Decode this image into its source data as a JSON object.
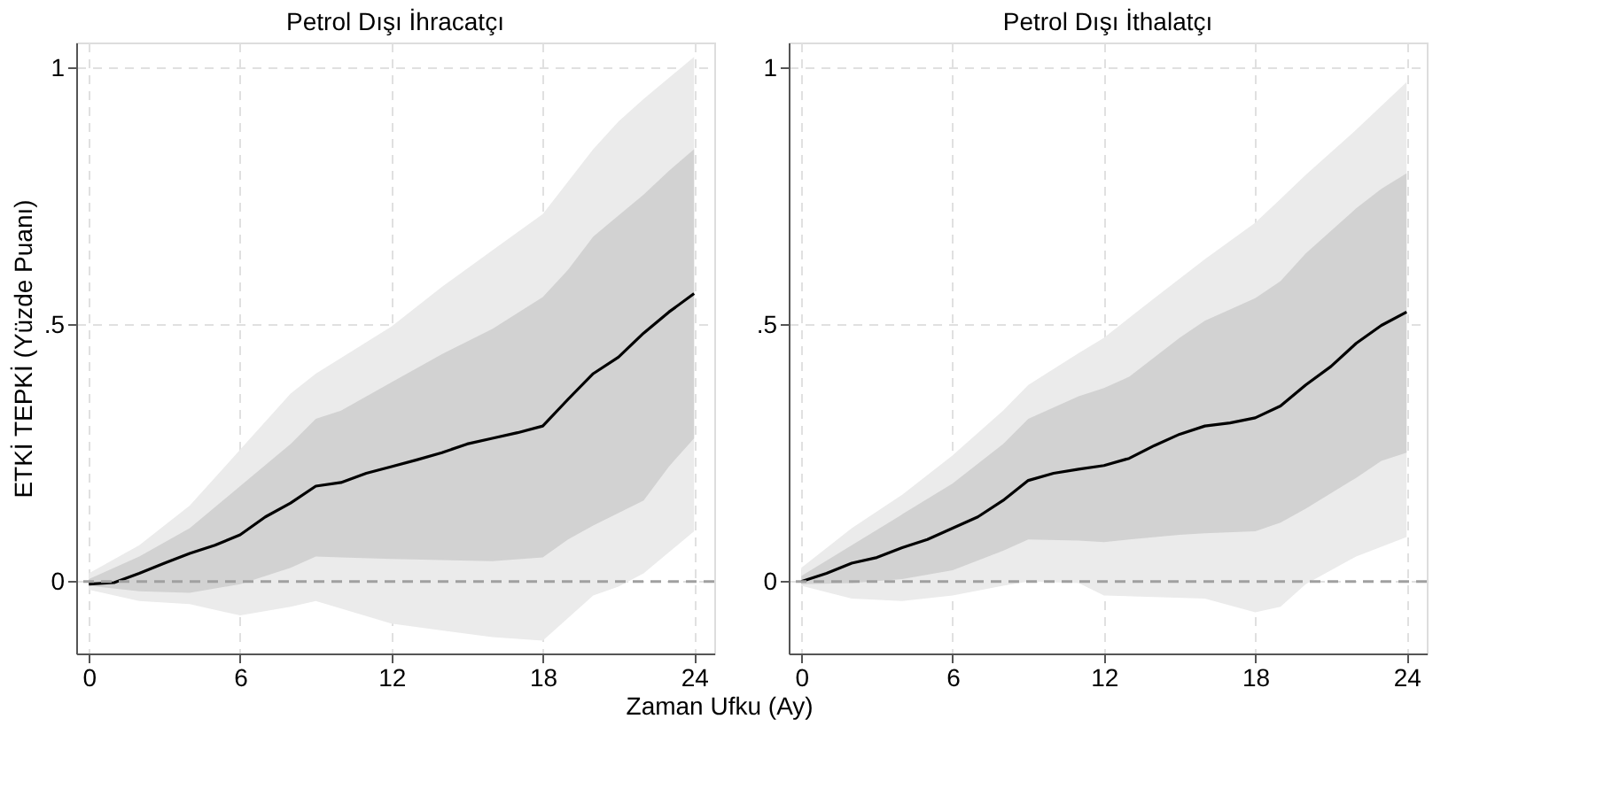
{
  "chart_data": [
    {
      "type": "line",
      "title": "Petrol Dışı İhracatçı",
      "xlabel": "Zaman Ufku (Ay)",
      "ylabel": "ETKİ TEPKİ (Yüzde Puanı)",
      "xlim": [
        -0.5,
        24.8
      ],
      "ylim": [
        -0.14,
        1.05
      ],
      "xticks": [
        0,
        6,
        12,
        18,
        24
      ],
      "yticks": [
        0,
        {
          "value": 0.5,
          "label": ".5"
        },
        1
      ],
      "grid": true,
      "series": [
        {
          "color": "#ebebeb",
          "x": [
            0,
            2,
            4,
            6,
            8,
            9,
            12,
            14,
            16,
            18,
            20,
            21,
            22,
            24
          ],
          "values": [
            null,
            null,
            null,
            null,
            null,
            null,
            null,
            null,
            null,
            null,
            null,
            null,
            null,
            null
          ],
          "upper": [
            0.016,
            0.071,
            0.148,
            0.257,
            0.366,
            0.405,
            0.497,
            0.574,
            0.645,
            0.716,
            0.842,
            0.896,
            0.94,
            1.022
          ],
          "lower": [
            -0.016,
            -0.038,
            -0.044,
            -0.066,
            -0.049,
            -0.038,
            -0.082,
            -0.095,
            -0.108,
            -0.115,
            -0.027,
            -0.01,
            0.016,
            0.098
          ]
        },
        {
          "color": "#d2d2d2",
          "x": [
            0,
            2,
            4,
            6,
            8,
            9,
            10,
            12,
            14,
            16,
            18,
            19,
            20,
            22,
            23,
            24
          ],
          "values": [
            null,
            null,
            null,
            null,
            null,
            null,
            null,
            null,
            null,
            null,
            null,
            null,
            null,
            null,
            null,
            null
          ],
          "upper": [
            0.005,
            0.049,
            0.104,
            0.186,
            0.268,
            0.317,
            0.333,
            0.388,
            0.443,
            0.492,
            0.554,
            0.607,
            0.672,
            0.754,
            0.8,
            0.842
          ],
          "lower": [
            -0.008,
            -0.019,
            -0.022,
            -0.005,
            0.027,
            0.049,
            0.047,
            0.044,
            0.042,
            0.04,
            0.047,
            0.082,
            0.109,
            0.158,
            0.224,
            0.279
          ]
        },
        {
          "color": "#000000",
          "x": [
            0,
            1,
            2,
            3,
            4,
            5,
            6,
            7,
            8,
            9,
            10,
            11,
            12,
            13,
            14,
            15,
            16,
            17,
            18,
            19,
            20,
            21,
            22,
            23,
            24
          ],
          "values": [
            -0.005,
            -0.002,
            0.016,
            0.036,
            0.055,
            0.071,
            0.091,
            0.126,
            0.153,
            0.186,
            0.193,
            0.211,
            0.224,
            0.237,
            0.251,
            0.268,
            0.279,
            0.29,
            0.303,
            0.355,
            0.405,
            0.437,
            0.484,
            0.525,
            0.561
          ]
        }
      ],
      "ref_lines": [
        {
          "axis": "y",
          "value": 0,
          "color": "#a0a0a0",
          "line_style": "dashed"
        }
      ]
    },
    {
      "type": "line",
      "title": "Petrol Dışı İthalatçı",
      "xlim": [
        -0.5,
        24.8
      ],
      "ylim": [
        -0.14,
        1.05
      ],
      "xticks": [
        0,
        6,
        12,
        18,
        24
      ],
      "yticks": [
        0,
        {
          "value": 0.5,
          "label": ".5"
        },
        1
      ],
      "grid": true,
      "series": [
        {
          "color": "#ebebeb",
          "x": [
            0,
            2,
            4,
            6,
            8,
            9,
            11,
            12,
            14,
            16,
            18,
            19,
            20,
            22,
            24
          ],
          "values": [
            null,
            null,
            null,
            null,
            null,
            null,
            null,
            null,
            null,
            null,
            null,
            null,
            null,
            null,
            null
          ],
          "upper": [
            0.027,
            0.104,
            0.169,
            0.246,
            0.333,
            0.383,
            0.445,
            0.475,
            0.552,
            0.628,
            0.699,
            0.745,
            0.792,
            0.88,
            0.973
          ],
          "lower": [
            -0.008,
            -0.033,
            -0.038,
            -0.027,
            -0.008,
            0.0,
            -0.003,
            -0.027,
            -0.03,
            -0.033,
            -0.06,
            -0.049,
            -0.005,
            0.049,
            0.087
          ]
        },
        {
          "color": "#d2d2d2",
          "x": [
            0,
            2,
            4,
            6,
            8,
            9,
            11,
            12,
            13,
            15,
            16,
            18,
            19,
            20,
            22,
            23,
            24
          ],
          "values": [
            null,
            null,
            null,
            null,
            null,
            null,
            null,
            null,
            null,
            null,
            null,
            null,
            null,
            null,
            null,
            null,
            null
          ],
          "upper": [
            0.011,
            0.071,
            0.131,
            0.191,
            0.268,
            0.317,
            0.361,
            0.377,
            0.399,
            0.475,
            0.508,
            0.552,
            0.585,
            0.639,
            0.727,
            0.765,
            0.795
          ],
          "lower": [
            -0.005,
            -0.003,
            0.005,
            0.022,
            0.06,
            0.082,
            0.08,
            0.077,
            0.082,
            0.091,
            0.094,
            0.098,
            0.115,
            0.142,
            0.202,
            0.235,
            0.251
          ]
        },
        {
          "color": "#000000",
          "x": [
            0,
            1,
            2,
            3,
            4,
            5,
            6,
            7,
            8,
            9,
            10,
            11,
            12,
            13,
            14,
            15,
            16,
            17,
            18,
            19,
            20,
            21,
            22,
            23,
            24
          ],
          "values": [
            0.0,
            0.016,
            0.036,
            0.047,
            0.066,
            0.082,
            0.104,
            0.126,
            0.158,
            0.197,
            0.211,
            0.219,
            0.226,
            0.24,
            0.265,
            0.287,
            0.303,
            0.309,
            0.319,
            0.342,
            0.383,
            0.419,
            0.464,
            0.499,
            0.525
          ]
        }
      ],
      "ref_lines": [
        {
          "axis": "y",
          "value": 0,
          "color": "#a0a0a0",
          "line_style": "dashed"
        }
      ]
    }
  ]
}
